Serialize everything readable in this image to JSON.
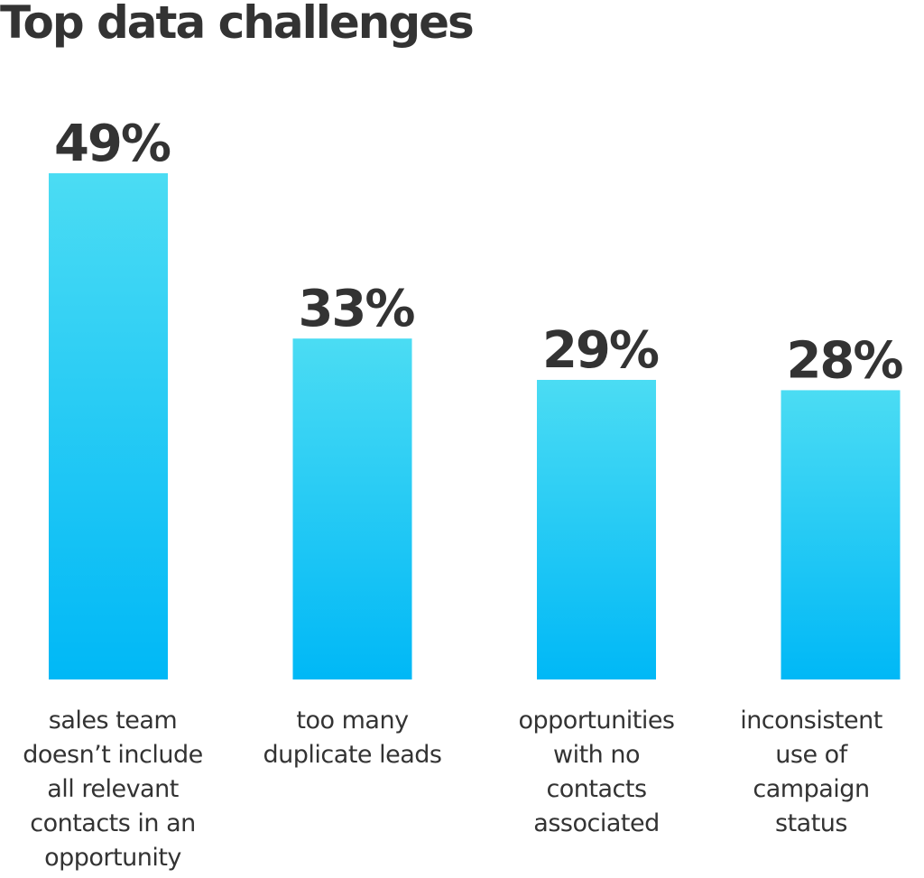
{
  "chart_data": {
    "type": "bar",
    "title": "Top data challenges",
    "categories": [
      "sales team doesn’t include all relevant contacts in an opportunity",
      "too many duplicate leads",
      "opportunities with no contacts associated",
      "inconsistent use of campaign status"
    ],
    "category_lines": [
      [
        "sales team",
        "doesn’t include",
        "all relevant",
        "contacts in an",
        "opportunity"
      ],
      [
        "too many",
        "duplicate leads"
      ],
      [
        "opportunities",
        "with no",
        "contacts",
        "associated"
      ],
      [
        "inconsistent",
        "use of",
        "campaign",
        "status"
      ]
    ],
    "values": [
      49,
      33,
      29,
      28
    ],
    "value_labels": [
      "49%",
      "33%",
      "29%",
      "28%"
    ],
    "unit": "%",
    "ylim": [
      0,
      49
    ],
    "grid": false,
    "legend": "none",
    "colors": {
      "bar_top": "#4bdcf3",
      "bar_bottom": "#00b8f6",
      "text": "#333333"
    }
  }
}
